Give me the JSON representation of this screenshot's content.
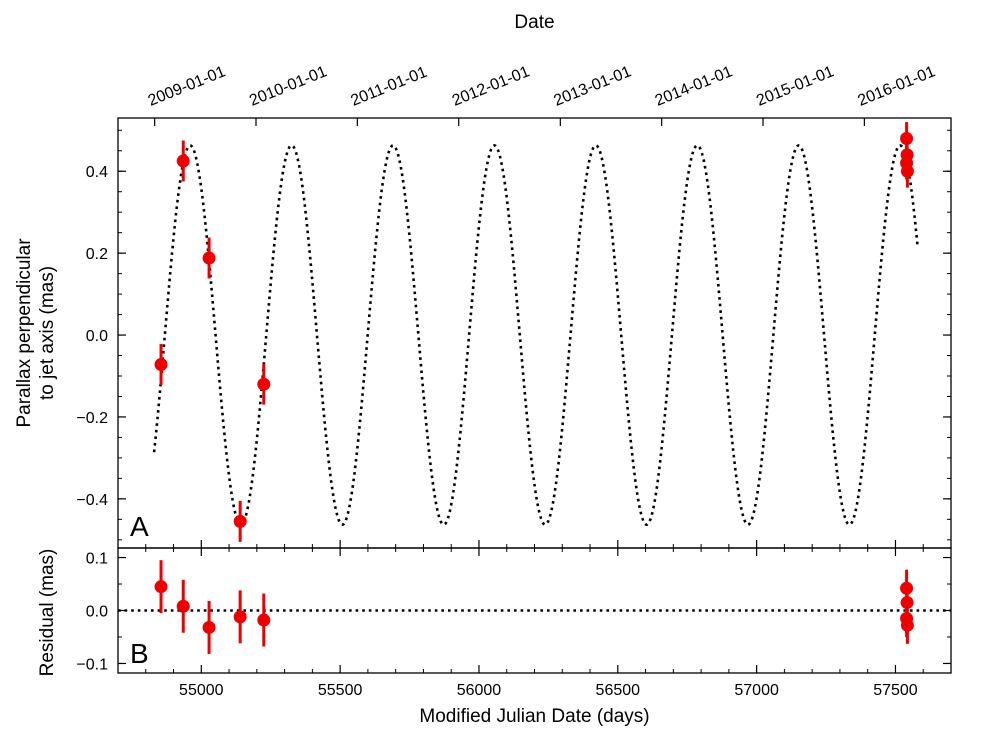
{
  "chart_data": {
    "type": "scatter",
    "top_axis": {
      "title": "Date",
      "tick_labels": [
        "2009-01-01",
        "2010-01-01",
        "2011-01-01",
        "2012-01-01",
        "2013-01-01",
        "2014-01-01",
        "2015-01-01",
        "2016-01-01"
      ],
      "tick_values": [
        "2009-01-01",
        "2010-01-01",
        "2011-01-01",
        "2012-01-01",
        "2013-01-01",
        "2014-01-01",
        "2015-01-01",
        "2016-01-01"
      ]
    },
    "xlabel": "Modified Julian Date (days)",
    "xlim": [
      54700,
      57700
    ],
    "xticks": [
      55000,
      55500,
      56000,
      56500,
      57000,
      57500
    ],
    "panels": [
      {
        "tag": "A",
        "ylabel_lines": [
          "Parallax perpendicular",
          "to jet axis (mas)"
        ],
        "ylim": [
          -0.52,
          0.53
        ],
        "yticks": [
          -0.4,
          -0.2,
          0.0,
          0.2,
          0.4
        ],
        "ytick_labels": [
          "−0.4",
          "−0.2",
          "0.0",
          "0.2",
          "0.4"
        ],
        "model_curve": {
          "style": "dotted",
          "color": "#000000",
          "x_range": [
            54830,
            57580
          ],
          "amplitude": 0.463,
          "period_days": 365.25,
          "peak_mjd": 54960
        },
        "points": [
          {
            "x": 54855,
            "y": -0.072,
            "yerr": 0.05
          },
          {
            "x": 54935,
            "y": 0.425,
            "yerr": 0.05
          },
          {
            "x": 55028,
            "y": 0.188,
            "yerr": 0.05
          },
          {
            "x": 55140,
            "y": -0.455,
            "yerr": 0.05
          },
          {
            "x": 55225,
            "y": -0.12,
            "yerr": 0.05
          },
          {
            "x": 57540,
            "y": 0.48,
            "yerr": 0.04
          },
          {
            "x": 57542,
            "y": 0.44,
            "yerr": 0.04
          },
          {
            "x": 57540,
            "y": 0.42,
            "yerr": 0.04
          },
          {
            "x": 57543,
            "y": 0.4,
            "yerr": 0.04
          }
        ]
      },
      {
        "tag": "B",
        "ylabel_lines": [
          "Residual (mas)"
        ],
        "ylim": [
          -0.118,
          0.118
        ],
        "yticks": [
          -0.1,
          0.0,
          0.1
        ],
        "ytick_labels": [
          "−0.1",
          "0.0",
          "0.1"
        ],
        "zero_line": {
          "y": 0.0,
          "style": "dotted",
          "color": "#000000"
        },
        "points": [
          {
            "x": 54855,
            "y": 0.045,
            "yerr": 0.05
          },
          {
            "x": 54935,
            "y": 0.008,
            "yerr": 0.05
          },
          {
            "x": 55028,
            "y": -0.032,
            "yerr": 0.05
          },
          {
            "x": 55140,
            "y": -0.012,
            "yerr": 0.05
          },
          {
            "x": 55225,
            "y": -0.018,
            "yerr": 0.05
          },
          {
            "x": 57540,
            "y": 0.042,
            "yerr": 0.035
          },
          {
            "x": 57542,
            "y": 0.015,
            "yerr": 0.035
          },
          {
            "x": 57540,
            "y": -0.015,
            "yerr": 0.035
          },
          {
            "x": 57543,
            "y": -0.028,
            "yerr": 0.035
          }
        ]
      }
    ],
    "marker_color": "#ee0000",
    "grid": false,
    "legend": "none"
  }
}
